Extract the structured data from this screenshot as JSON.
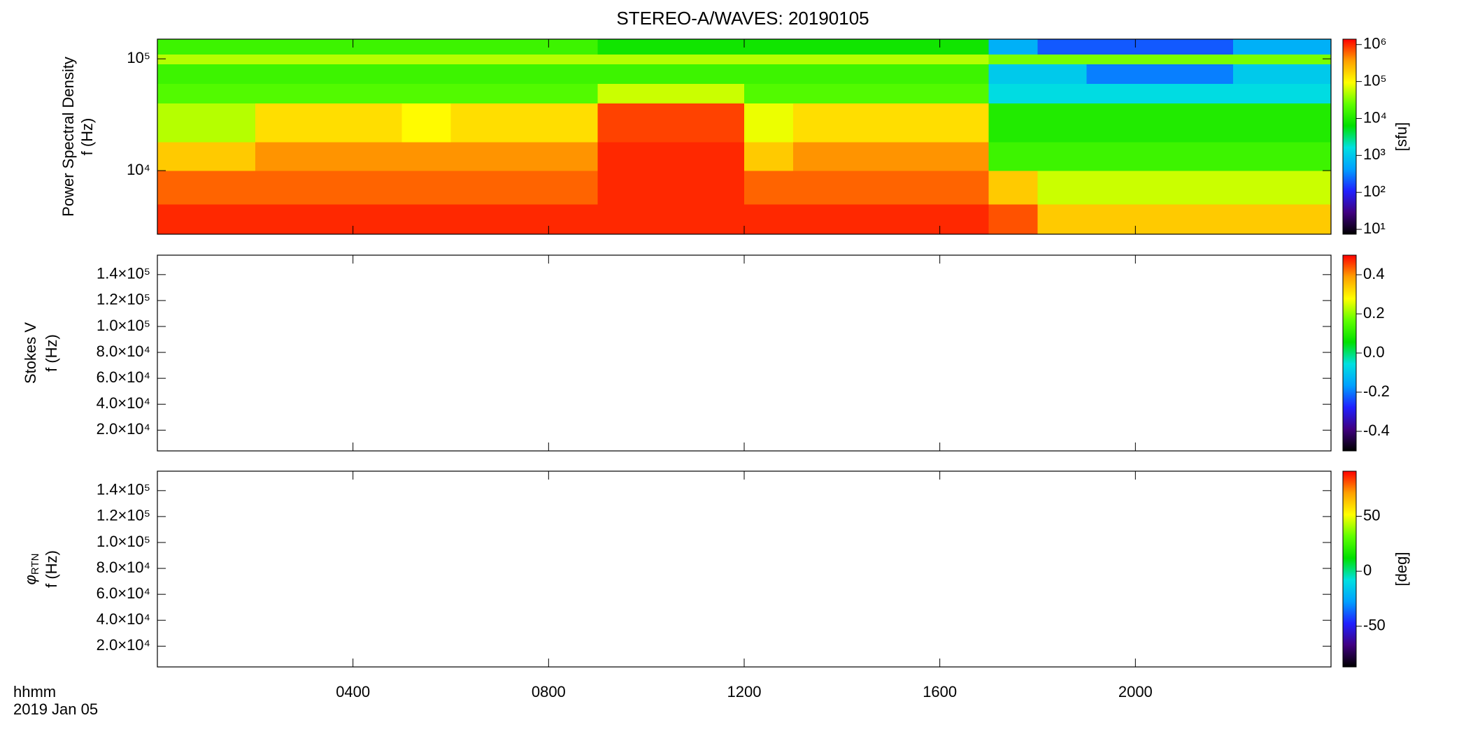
{
  "title": "STEREO-A/WAVES: 20190105",
  "colormap": [
    "#000000",
    "#400080",
    "#2020ff",
    "#00a0ff",
    "#00e0e0",
    "#00e000",
    "#60ff00",
    "#ffff00",
    "#ffa000",
    "#ff0000"
  ],
  "chart_data": [
    {
      "type": "heatmap",
      "ylabel": [
        "Power Spectral Density",
        "f (Hz)"
      ],
      "ylog": true,
      "xlim": [
        0,
        24
      ],
      "ylim": [
        2700,
        150000
      ],
      "yticks": [
        {
          "value": 10000,
          "label": "10⁴"
        },
        {
          "value": 100000,
          "label": "10⁵"
        }
      ],
      "x_edges": [
        0,
        1,
        2,
        3,
        4,
        5,
        6,
        7,
        8,
        9,
        10,
        11,
        12,
        13,
        14,
        15,
        16,
        17,
        18,
        19,
        20,
        21,
        22,
        23,
        24
      ],
      "y_edges": [
        2700,
        5000,
        10000,
        18000,
        40000,
        60000,
        90000,
        110000,
        150000
      ],
      "z": [
        [
          1000000,
          1000000,
          1000000,
          1000000,
          1000000,
          1000000,
          1000000,
          1000000,
          1000000,
          1000000,
          1000000,
          1000000,
          1000000,
          1000000,
          1000000,
          1000000,
          1000000,
          700000,
          200000,
          200000,
          200000,
          200000,
          200000,
          200000
        ],
        [
          600000,
          600000,
          600000,
          600000,
          600000,
          600000,
          600000,
          600000,
          600000,
          1000000,
          1000000,
          1000000,
          600000,
          600000,
          600000,
          600000,
          600000,
          200000,
          60000,
          60000,
          60000,
          60000,
          60000,
          60000
        ],
        [
          200000,
          200000,
          400000,
          400000,
          400000,
          400000,
          400000,
          400000,
          400000,
          1000000,
          1000000,
          1000000,
          200000,
          400000,
          400000,
          400000,
          400000,
          15000,
          15000,
          15000,
          15000,
          15000,
          15000,
          15000
        ],
        [
          50000,
          50000,
          150000,
          150000,
          150000,
          100000,
          150000,
          150000,
          150000,
          800000,
          800000,
          800000,
          80000,
          150000,
          150000,
          150000,
          150000,
          10000,
          10000,
          10000,
          10000,
          10000,
          10000,
          10000
        ],
        [
          20000,
          20000,
          20000,
          20000,
          20000,
          20000,
          20000,
          20000,
          20000,
          60000,
          60000,
          60000,
          20000,
          20000,
          20000,
          20000,
          20000,
          1500,
          1500,
          1500,
          1500,
          1500,
          1500,
          1500
        ],
        [
          15000,
          15000,
          15000,
          15000,
          15000,
          15000,
          15000,
          15000,
          15000,
          15000,
          15000,
          15000,
          15000,
          15000,
          15000,
          15000,
          15000,
          1000,
          1000,
          300,
          300,
          300,
          1000,
          1000
        ],
        [
          50000,
          50000,
          50000,
          50000,
          50000,
          50000,
          50000,
          50000,
          50000,
          50000,
          50000,
          50000,
          50000,
          50000,
          50000,
          50000,
          50000,
          30000,
          30000,
          30000,
          30000,
          30000,
          30000,
          30000
        ],
        [
          15000,
          15000,
          15000,
          15000,
          15000,
          15000,
          15000,
          15000,
          15000,
          8000,
          8000,
          8000,
          8000,
          8000,
          8000,
          8000,
          8000,
          600,
          200,
          200,
          200,
          200,
          600,
          600
        ]
      ],
      "zlog": true,
      "zlim": [
        7.4,
        1400000
      ],
      "zticks": [
        {
          "value": 10,
          "label": "10¹"
        },
        {
          "value": 100,
          "label": "10²"
        },
        {
          "value": 1000,
          "label": "10³"
        },
        {
          "value": 10000,
          "label": "10⁴"
        },
        {
          "value": 100000,
          "label": "10⁵"
        },
        {
          "value": 1000000,
          "label": "10⁶"
        }
      ],
      "zlabel": "[sfu]"
    },
    {
      "type": "heatmap",
      "ylabel": [
        "Stokes V",
        "f (Hz)"
      ],
      "xlim": [
        0,
        24
      ],
      "ylim": [
        4000,
        155000
      ],
      "yticks": [
        {
          "value": 20000,
          "label": "2.0×10⁴"
        },
        {
          "value": 40000,
          "label": "4.0×10⁴"
        },
        {
          "value": 60000,
          "label": "6.0×10⁴"
        },
        {
          "value": 80000,
          "label": "8.0×10⁴"
        },
        {
          "value": 100000,
          "label": "1.0×10⁵"
        },
        {
          "value": 120000,
          "label": "1.2×10⁵"
        },
        {
          "value": 140000,
          "label": "1.4×10⁵"
        }
      ],
      "zlim": [
        -0.5,
        0.5
      ],
      "zticks": [
        -0.4,
        -0.2,
        {
          "value": 0,
          "label": "0.0"
        },
        0.2,
        0.4
      ]
    },
    {
      "type": "heatmap",
      "ylabel": [
        {
          "symbol": "φ",
          "subscript": "RTN"
        },
        "f (Hz)"
      ],
      "xlim": [
        0,
        24
      ],
      "ylim": [
        4000,
        155000
      ],
      "yticks": [
        {
          "value": 20000,
          "label": "2.0×10⁴"
        },
        {
          "value": 40000,
          "label": "4.0×10⁴"
        },
        {
          "value": 60000,
          "label": "6.0×10⁴"
        },
        {
          "value": 80000,
          "label": "8.0×10⁴"
        },
        {
          "value": 100000,
          "label": "1.0×10⁵"
        },
        {
          "value": 120000,
          "label": "1.2×10⁵"
        },
        {
          "value": 140000,
          "label": "1.4×10⁵"
        }
      ],
      "zlim": [
        -87,
        91
      ],
      "zticks": [
        -50,
        0,
        50
      ],
      "zlabel": "[deg]",
      "xticks": [
        {
          "value": 4,
          "label": "0400"
        },
        {
          "value": 8,
          "label": "0800"
        },
        {
          "value": 12,
          "label": "1200"
        },
        {
          "value": 16,
          "label": "1600"
        },
        {
          "value": 20,
          "label": "2000"
        }
      ],
      "xlabel": [
        "hhmm",
        "2019 Jan 05"
      ]
    }
  ]
}
